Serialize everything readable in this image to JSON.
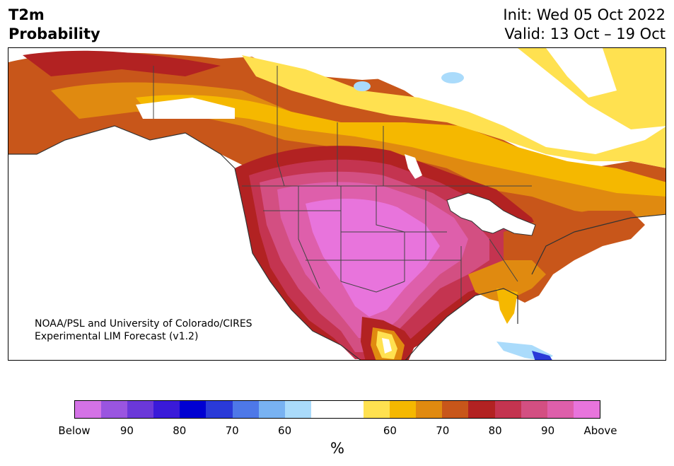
{
  "header": {
    "title_line1": "T2m",
    "title_line2": "Probability",
    "init": "Init: Wed 05 Oct 2022",
    "valid": "Valid: 13 Oct – 19 Oct"
  },
  "map": {
    "credit_line1": "NOAA/PSL and University of Colorado/CIRES",
    "credit_line2": "Experimental LIM Forecast (v1.2)",
    "variable": "2m temperature probability",
    "region": "North America"
  },
  "colorbar": {
    "colors": [
      "#d472e6",
      "#9a55e0",
      "#6b38d9",
      "#3a1ad9",
      "#0000d2",
      "#2a3ad8",
      "#4e78e8",
      "#78b2f2",
      "#aadbfb",
      "#ffffff",
      "#ffffff",
      "#ffe150",
      "#f5b800",
      "#e08a10",
      "#c8561a",
      "#b22222",
      "#c43450",
      "#d34f82",
      "#de5fab",
      "#e874dc"
    ],
    "tick_labels": [
      "Below",
      "90",
      "80",
      "70",
      "60",
      "60",
      "70",
      "80",
      "90",
      "Above"
    ],
    "unit": "%"
  }
}
